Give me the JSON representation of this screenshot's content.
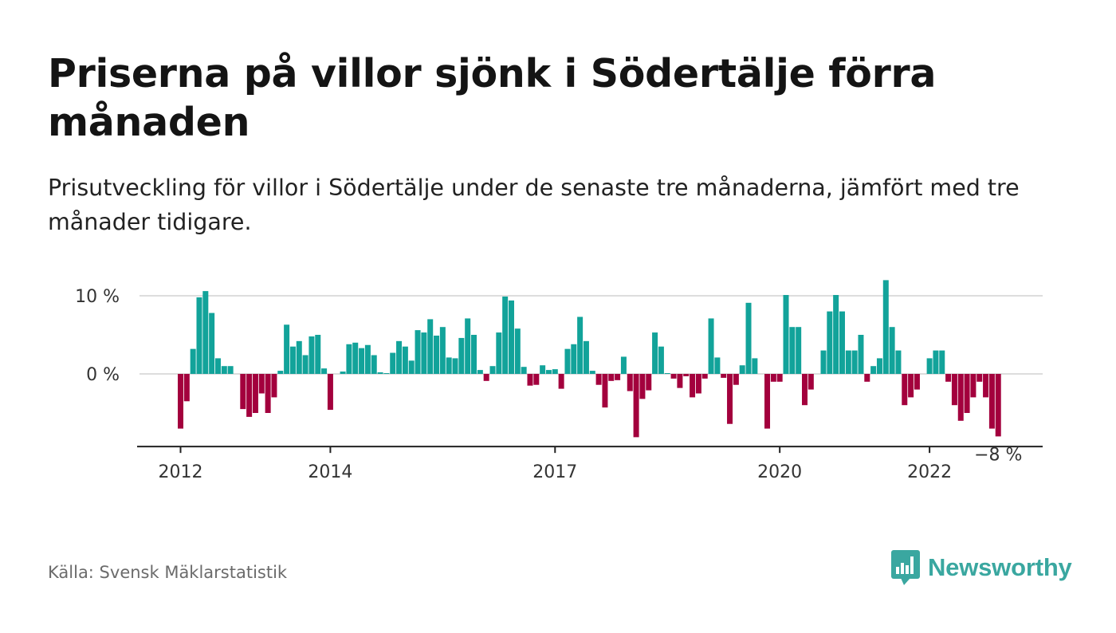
{
  "title": "Priserna på villor sjönk i Södertälje förra månaden",
  "subtitle": "Prisutveckling för villor i Södertälje under de senaste tre månaderna, jämfört med tre månader tidigare.",
  "source": "Källa: Svensk Mäklarstatistik",
  "brand": {
    "name": "Newsworthy",
    "color": "#3aa7a0",
    "icon": "bar-chart-speech-bubble-icon"
  },
  "colors": {
    "positive": "#12a39a",
    "negative": "#a3003d",
    "grid": "#dddddd",
    "axis": "#222222"
  },
  "last_value_label": "−8 %",
  "chart_data": {
    "type": "bar",
    "title": "Priserna på villor sjönk i Södertälje förra månaden",
    "xlabel": "",
    "ylabel": "",
    "ylim": [
      -9.3,
      12
    ],
    "y_ticks": [
      {
        "value": 10,
        "label": "10 %"
      },
      {
        "value": 0,
        "label": "0 %"
      }
    ],
    "x_ticks": [
      {
        "index": 0,
        "label": "2012"
      },
      {
        "index": 24,
        "label": "2014"
      },
      {
        "index": 60,
        "label": "2017"
      },
      {
        "index": 96,
        "label": "2020"
      },
      {
        "index": 120,
        "label": "2022"
      }
    ],
    "start": "2012-01",
    "frequency": "monthly",
    "grid": true,
    "legend": "none",
    "values": [
      -7,
      -3.5,
      3.2,
      9.8,
      10.6,
      7.8,
      2,
      1,
      1,
      0,
      -4.5,
      -5.5,
      -5,
      -2.5,
      -5,
      -3,
      0.4,
      6.3,
      3.5,
      4.2,
      2.4,
      4.8,
      5,
      0.7,
      -4.6,
      0,
      0.3,
      3.8,
      4,
      3.3,
      3.7,
      2.4,
      0.2,
      0.1,
      2.7,
      4.2,
      3.5,
      1.7,
      5.6,
      5.3,
      7,
      4.9,
      6,
      2.1,
      2,
      4.6,
      7.1,
      5,
      0.5,
      -0.9,
      1,
      5.3,
      9.9,
      9.4,
      5.8,
      0.9,
      -1.5,
      -1.4,
      1.1,
      0.5,
      0.6,
      -1.9,
      3.2,
      3.8,
      7.3,
      4.2,
      0.4,
      -1.4,
      -4.3,
      -0.9,
      -0.8,
      2.2,
      -2.2,
      -8.1,
      -3.2,
      -2.1,
      5.3,
      3.5,
      0.1,
      -0.6,
      -1.8,
      -0.3,
      -3,
      -2.5,
      -0.6,
      7.1,
      2.1,
      -0.5,
      -6.4,
      -1.4,
      1.1,
      9.1,
      2,
      0,
      -7,
      -1,
      -1,
      10.1,
      6,
      6,
      -4,
      -2,
      0,
      3,
      8,
      10.1,
      8,
      3,
      3,
      5,
      -1,
      1,
      2,
      12,
      6,
      3,
      -4,
      -3,
      -2,
      0,
      2,
      3,
      3,
      -1,
      -4,
      -6,
      -5,
      -3,
      -1,
      -3,
      -7,
      -8
    ]
  }
}
